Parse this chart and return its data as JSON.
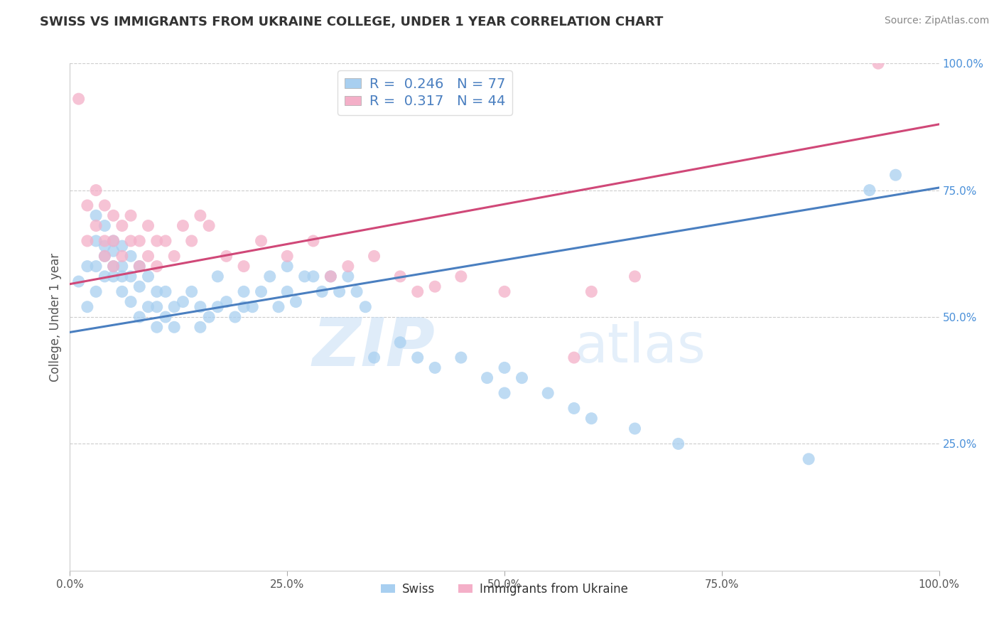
{
  "title": "SWISS VS IMMIGRANTS FROM UKRAINE COLLEGE, UNDER 1 YEAR CORRELATION CHART",
  "source": "Source: ZipAtlas.com",
  "ylabel": "College, Under 1 year",
  "xlabel": "",
  "watermark": "ZIPatlas",
  "xlim": [
    0.0,
    1.0
  ],
  "ylim": [
    0.0,
    1.0
  ],
  "xticks": [
    0.0,
    0.25,
    0.5,
    0.75,
    1.0
  ],
  "xtick_labels": [
    "0.0%",
    "25.0%",
    "50.0%",
    "75.0%",
    "100.0%"
  ],
  "ytick_labels_right": [
    "25.0%",
    "50.0%",
    "75.0%",
    "100.0%"
  ],
  "yticks_right": [
    0.25,
    0.5,
    0.75,
    1.0
  ],
  "swiss_color": "#a8cff0",
  "ukraine_color": "#f4afc8",
  "swiss_line_color": "#4a7fc0",
  "ukraine_line_color": "#d04878",
  "legend_R_swiss": "0.246",
  "legend_N_swiss": "77",
  "legend_R_ukraine": "0.317",
  "legend_N_ukraine": "44",
  "swiss_line_x0": 0.0,
  "swiss_line_y0": 0.47,
  "swiss_line_x1": 1.0,
  "swiss_line_y1": 0.755,
  "ukraine_line_x0": 0.0,
  "ukraine_line_y0": 0.565,
  "ukraine_line_x1": 1.0,
  "ukraine_line_y1": 0.88,
  "swiss_scatter_x": [
    0.01,
    0.02,
    0.02,
    0.03,
    0.03,
    0.03,
    0.03,
    0.04,
    0.04,
    0.04,
    0.04,
    0.05,
    0.05,
    0.05,
    0.05,
    0.06,
    0.06,
    0.06,
    0.06,
    0.07,
    0.07,
    0.07,
    0.08,
    0.08,
    0.08,
    0.09,
    0.09,
    0.1,
    0.1,
    0.1,
    0.11,
    0.11,
    0.12,
    0.12,
    0.13,
    0.14,
    0.15,
    0.15,
    0.16,
    0.17,
    0.17,
    0.18,
    0.19,
    0.2,
    0.2,
    0.21,
    0.22,
    0.23,
    0.24,
    0.25,
    0.25,
    0.26,
    0.27,
    0.28,
    0.29,
    0.3,
    0.31,
    0.32,
    0.33,
    0.34,
    0.35,
    0.38,
    0.4,
    0.42,
    0.45,
    0.48,
    0.5,
    0.5,
    0.52,
    0.55,
    0.58,
    0.6,
    0.65,
    0.7,
    0.85,
    0.92,
    0.95
  ],
  "swiss_scatter_y": [
    0.57,
    0.6,
    0.52,
    0.55,
    0.6,
    0.65,
    0.7,
    0.62,
    0.58,
    0.64,
    0.68,
    0.6,
    0.63,
    0.58,
    0.65,
    0.6,
    0.64,
    0.58,
    0.55,
    0.62,
    0.58,
    0.53,
    0.6,
    0.56,
    0.5,
    0.58,
    0.52,
    0.55,
    0.52,
    0.48,
    0.5,
    0.55,
    0.52,
    0.48,
    0.53,
    0.55,
    0.52,
    0.48,
    0.5,
    0.52,
    0.58,
    0.53,
    0.5,
    0.52,
    0.55,
    0.52,
    0.55,
    0.58,
    0.52,
    0.55,
    0.6,
    0.53,
    0.58,
    0.58,
    0.55,
    0.58,
    0.55,
    0.58,
    0.55,
    0.52,
    0.42,
    0.45,
    0.42,
    0.4,
    0.42,
    0.38,
    0.4,
    0.35,
    0.38,
    0.35,
    0.32,
    0.3,
    0.28,
    0.25,
    0.22,
    0.75,
    0.78
  ],
  "ukraine_scatter_x": [
    0.01,
    0.02,
    0.02,
    0.03,
    0.03,
    0.04,
    0.04,
    0.04,
    0.05,
    0.05,
    0.05,
    0.06,
    0.06,
    0.07,
    0.07,
    0.08,
    0.08,
    0.09,
    0.09,
    0.1,
    0.1,
    0.11,
    0.12,
    0.13,
    0.14,
    0.15,
    0.16,
    0.18,
    0.2,
    0.22,
    0.25,
    0.28,
    0.3,
    0.32,
    0.35,
    0.38,
    0.4,
    0.42,
    0.45,
    0.5,
    0.58,
    0.6,
    0.65,
    0.93
  ],
  "ukraine_scatter_y": [
    0.93,
    0.72,
    0.65,
    0.75,
    0.68,
    0.72,
    0.65,
    0.62,
    0.7,
    0.65,
    0.6,
    0.68,
    0.62,
    0.7,
    0.65,
    0.65,
    0.6,
    0.68,
    0.62,
    0.65,
    0.6,
    0.65,
    0.62,
    0.68,
    0.65,
    0.7,
    0.68,
    0.62,
    0.6,
    0.65,
    0.62,
    0.65,
    0.58,
    0.6,
    0.62,
    0.58,
    0.55,
    0.56,
    0.58,
    0.55,
    0.42,
    0.55,
    0.58,
    1.0
  ],
  "background_color": "#ffffff",
  "grid_color": "#cccccc",
  "title_color": "#333333",
  "axis_label_color": "#555555",
  "right_tick_color": "#4a90d9",
  "legend_text_color": "#4a7fc0"
}
